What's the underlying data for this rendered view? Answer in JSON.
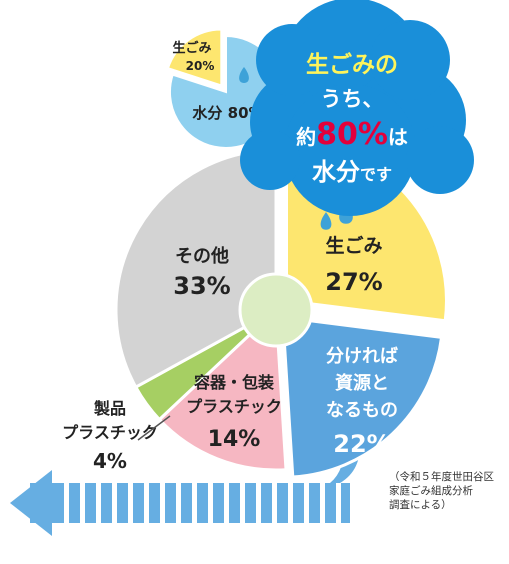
{
  "chart_data": [
    {
      "type": "pie",
      "slices": [
        {
          "name": "生ごみ",
          "value": 27,
          "value_label": "27%",
          "color": "#fde66f"
        },
        {
          "name": "分ければ資源となるもの",
          "label_lines": [
            "分ければ",
            "資源と",
            "なるもの"
          ],
          "value": 22,
          "value_label": "22%",
          "color": "#5ba4dd"
        },
        {
          "name": "容器・包装プラスチック",
          "label_lines": [
            "容器・包装",
            "プラスチック"
          ],
          "value": 14,
          "value_label": "14%",
          "color": "#f6b7c2"
        },
        {
          "name": "製品プラスチック",
          "label_lines": [
            "製品",
            "プラスチック"
          ],
          "value": 4,
          "value_label": "4%",
          "color": "#a6cf63"
        },
        {
          "name": "その他",
          "value": 33,
          "value_label": "33%",
          "color": "#d3d3d3"
        }
      ]
    },
    {
      "type": "pie",
      "slices": [
        {
          "name": "生ごみ",
          "value": 20,
          "value_label": "20%",
          "color": "#fde66f"
        },
        {
          "name": "水分",
          "value": 80,
          "value_label": "80%",
          "color": "#8fd0ef"
        }
      ]
    }
  ],
  "callout": {
    "line1": "生ごみの",
    "line2": "うち、",
    "line3_a": "約",
    "line3_b": "80%",
    "line3_c": "は",
    "line4_a": "水分",
    "line4_b": "です"
  },
  "source_note": [
    "（令和５年度世田谷区",
    "家庭ごみ組成分析",
    "調査による）"
  ],
  "colors": {
    "cloud": "#1a8fd9",
    "accent_yellow": "#fff45a",
    "accent_red": "#e3003b",
    "arrow": "#66aee2",
    "center": "#dcedc3"
  }
}
